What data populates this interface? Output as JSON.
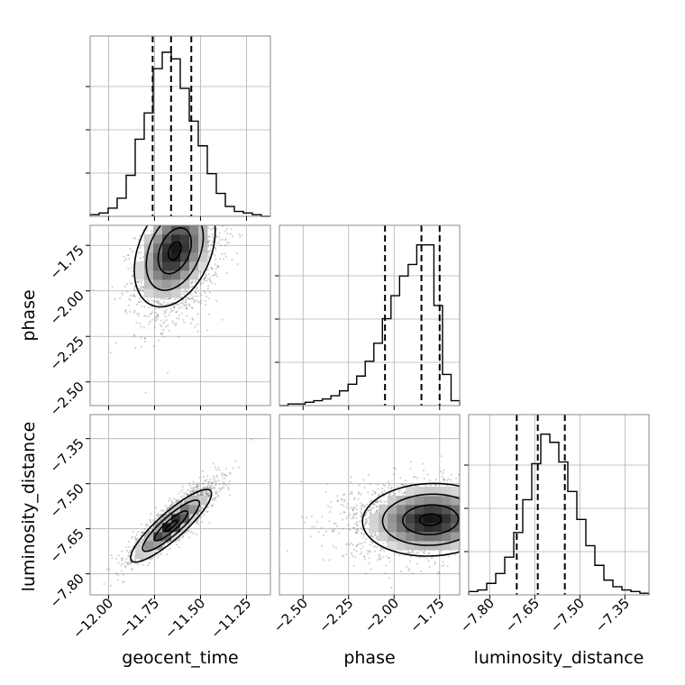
{
  "chart_data": {
    "type": "corner",
    "parameters": [
      "geocent_time",
      "phase",
      "luminosity_distance"
    ],
    "ranges": {
      "geocent_time": [
        -12.1,
        -11.12
      ],
      "phase": [
        -2.63,
        -1.64
      ],
      "luminosity_distance": [
        -7.87,
        -7.27
      ]
    },
    "ticks": {
      "geocent_time": [
        -12.0,
        -11.75,
        -11.5,
        -11.25
      ],
      "phase": [
        -2.5,
        -2.25,
        -2.0,
        -1.75
      ],
      "luminosity_distance": [
        -7.8,
        -7.65,
        -7.5,
        -7.35
      ]
    },
    "tick_labels": {
      "geocent_time": [
        "−12.00",
        "−11.75",
        "−11.50",
        "−11.25"
      ],
      "phase": [
        "−2.50",
        "−2.25",
        "−2.00",
        "−1.75"
      ],
      "luminosity_distance": [
        "−7.80",
        "−7.65",
        "−7.50",
        "−7.35"
      ]
    },
    "histograms": {
      "geocent_time": [
        0.01,
        0.02,
        0.05,
        0.11,
        0.25,
        0.47,
        0.63,
        0.9,
        1.0,
        0.96,
        0.78,
        0.58,
        0.43,
        0.26,
        0.14,
        0.06,
        0.03,
        0.02,
        0.01,
        0.0
      ],
      "phase": [
        0.0,
        0.01,
        0.01,
        0.02,
        0.03,
        0.04,
        0.06,
        0.09,
        0.13,
        0.18,
        0.27,
        0.38,
        0.53,
        0.67,
        0.79,
        0.86,
        0.98,
        0.98,
        0.61,
        0.19,
        0.03
      ],
      "luminosity_distance": [
        0.02,
        0.03,
        0.07,
        0.13,
        0.23,
        0.38,
        0.58,
        0.8,
        0.98,
        0.93,
        0.81,
        0.63,
        0.46,
        0.3,
        0.18,
        0.09,
        0.05,
        0.03,
        0.02,
        0.01
      ]
    },
    "quantiles": {
      "geocent_time": [
        -11.76,
        -11.66,
        -11.55
      ],
      "phase": [
        -2.05,
        -1.85,
        -1.75
      ],
      "luminosity_distance": [
        -7.71,
        -7.64,
        -7.55
      ]
    },
    "joint": [
      {
        "x": "geocent_time",
        "y": "phase",
        "mean": [
          -11.62,
          -1.84
        ],
        "sd": [
          0.1,
          0.14
        ],
        "rho": 0.35,
        "peak": [
          -11.64,
          -1.78
        ]
      },
      {
        "x": "geocent_time",
        "y": "luminosity_distance",
        "mean": [
          -11.64,
          -7.62
        ],
        "sd": [
          0.1,
          0.055
        ],
        "rho": 0.88,
        "peak": [
          -11.66,
          -7.64
        ]
      },
      {
        "x": "phase",
        "y": "luminosity_distance",
        "mean": [
          -1.88,
          -7.62
        ],
        "sd": [
          0.17,
          0.055
        ],
        "rho": 0.05,
        "peak": [
          -1.8,
          -7.62
        ]
      }
    ],
    "xlabels": [
      "geocent_time",
      "phase",
      "luminosity_distance"
    ],
    "ylabels": [
      "",
      "phase",
      "luminosity_distance"
    ],
    "grid": true
  }
}
